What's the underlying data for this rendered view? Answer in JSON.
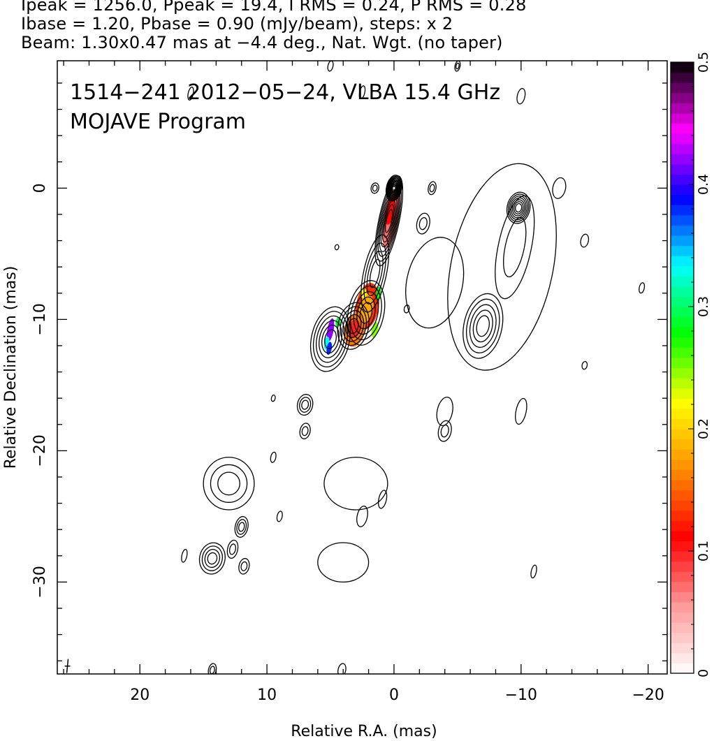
{
  "header": {
    "line1": "Ipeak = 1256.0, Ppeak = 19.4, I RMS = 0.24, P RMS = 0.28",
    "line2": "Ibase = 1.20, Pbase = 0.90 (mJy/beam), steps: x 2",
    "line3": "Beam: 1.30x0.47 mas at −4.4 deg., Nat. Wgt. (no taper)"
  },
  "annotation": {
    "line1": "1514−241  2012−05−24, VLBA 15.4 GHz",
    "line2": "MOJAVE Program"
  },
  "chart_data": {
    "type": "contour",
    "xlabel": "Relative R.A. (mas)",
    "ylabel": "Relative Declination (mas)",
    "xlim": [
      26.5,
      -21.5
    ],
    "ylim": [
      -37,
      9.7
    ],
    "xticks": [
      20,
      10,
      0,
      -10,
      -20
    ],
    "xtick_labels": [
      "20",
      "10",
      "0",
      "−10",
      "−20"
    ],
    "yticks": [
      0,
      -10,
      -20,
      -30
    ],
    "ytick_labels": [
      "0",
      "−10",
      "−20",
      "−30"
    ],
    "colorbar": {
      "min": 0,
      "max": 0.5,
      "ticks": [
        0,
        0.1,
        0.2,
        0.3,
        0.4,
        0.5
      ],
      "tick_labels": [
        "0",
        "0.1",
        "0.2",
        "0.3",
        "0.4",
        "0.5"
      ],
      "colors": [
        "#ffffff",
        "#ff9999",
        "#ff0000",
        "#ff8c00",
        "#ffff00",
        "#00ff00",
        "#00ffff",
        "#0000ff",
        "#ff00ff",
        "#000000"
      ]
    },
    "contour_groups": [
      {
        "x": 0,
        "y": 0,
        "rx": 0.6,
        "ry": 1.0,
        "levels": 10
      },
      {
        "x": 0.4,
        "y": -2.5,
        "rx": 0.8,
        "ry": 3.5,
        "levels": 8
      },
      {
        "x": 1.5,
        "y": -6.5,
        "rx": 0.9,
        "ry": 3.0,
        "levels": 4
      },
      {
        "x": 2.2,
        "y": -9.5,
        "rx": 1.4,
        "ry": 2.5,
        "levels": 5
      },
      {
        "x": 3.2,
        "y": -10.5,
        "rx": 1.2,
        "ry": 1.8,
        "levels": 5
      },
      {
        "x": 5.0,
        "y": -11.5,
        "rx": 1.5,
        "ry": 2.5,
        "levels": 6
      },
      {
        "x": -9.8,
        "y": -1.5,
        "rx": 0.9,
        "ry": 1.2,
        "levels": 7
      },
      {
        "x": -9.5,
        "y": -4.5,
        "rx": 1.3,
        "ry": 4.0,
        "levels": 2
      },
      {
        "x": -7.0,
        "y": -10.5,
        "rx": 1.5,
        "ry": 2.5,
        "levels": 5
      },
      {
        "x": -8.5,
        "y": -6.0,
        "rx": 4.0,
        "ry": 8.0,
        "levels": 1
      },
      {
        "x": 7.0,
        "y": -16.5,
        "rx": 0.6,
        "ry": 0.8,
        "levels": 3
      },
      {
        "x": 7.0,
        "y": -18.5,
        "rx": 0.4,
        "ry": 0.6,
        "levels": 2
      },
      {
        "x": 13.0,
        "y": -22.5,
        "rx": 2.0,
        "ry": 2.0,
        "levels": 3
      },
      {
        "x": 12.0,
        "y": -25.8,
        "rx": 0.5,
        "ry": 0.8,
        "levels": 3
      },
      {
        "x": 14.3,
        "y": -28.2,
        "rx": 1.0,
        "ry": 1.2,
        "levels": 4
      },
      {
        "x": 11.8,
        "y": -28.8,
        "rx": 0.4,
        "ry": 0.6,
        "levels": 2
      },
      {
        "x": 12.7,
        "y": -27.5,
        "rx": 0.4,
        "ry": 0.7,
        "levels": 2
      },
      {
        "x": 3.0,
        "y": -22.5,
        "rx": 2.5,
        "ry": 2.0,
        "levels": 1
      },
      {
        "x": 2.5,
        "y": -25.0,
        "rx": 0.4,
        "ry": 0.8,
        "levels": 1
      },
      {
        "x": 4.0,
        "y": -28.5,
        "rx": 2.0,
        "ry": 1.5,
        "levels": 1
      },
      {
        "x": -4.0,
        "y": -17.0,
        "rx": 0.6,
        "ry": 1.1,
        "levels": 1
      },
      {
        "x": -4.0,
        "y": -18.5,
        "rx": 0.5,
        "ry": 0.8,
        "levels": 2
      },
      {
        "x": -3.2,
        "y": -7.2,
        "rx": 2.2,
        "ry": 3.5,
        "levels": 1
      },
      {
        "x": 14.3,
        "y": -36.7,
        "rx": 0.3,
        "ry": 0.5,
        "levels": 2
      },
      {
        "x": 4.1,
        "y": -36.7,
        "rx": 0.3,
        "ry": 0.5,
        "levels": 1
      },
      {
        "x": -2.3,
        "y": -2.7,
        "rx": 0.5,
        "ry": 0.8,
        "levels": 2
      },
      {
        "x": -3.0,
        "y": 0,
        "rx": 0.3,
        "ry": 0.5,
        "levels": 2
      },
      {
        "x": 1.5,
        "y": 0,
        "rx": 0.3,
        "ry": 0.4,
        "levels": 2
      },
      {
        "x": -13.0,
        "y": 0,
        "rx": 0.5,
        "ry": 0.8,
        "levels": 1
      },
      {
        "x": 5.0,
        "y": 9.3,
        "rx": 0.2,
        "ry": 0.4,
        "levels": 1
      },
      {
        "x": -5.0,
        "y": 9.3,
        "rx": 0.2,
        "ry": 0.4,
        "levels": 2
      },
      {
        "x": -10.0,
        "y": -17.0,
        "rx": 0.4,
        "ry": 1.0,
        "levels": 1
      },
      {
        "x": -15.0,
        "y": -4.0,
        "rx": 0.3,
        "ry": 0.5,
        "levels": 1
      },
      {
        "x": -19.5,
        "y": -7.6,
        "rx": 0.2,
        "ry": 0.4,
        "levels": 1
      },
      {
        "x": 0.9,
        "y": -23.7,
        "rx": 0.3,
        "ry": 0.7,
        "levels": 1
      },
      {
        "x": 9.5,
        "y": -20.5,
        "rx": 0.2,
        "ry": 0.4,
        "levels": 1
      },
      {
        "x": 9.0,
        "y": -25.0,
        "rx": 0.2,
        "ry": 0.4,
        "levels": 1
      },
      {
        "x": 16.5,
        "y": -28.0,
        "rx": 0.2,
        "ry": 0.5,
        "levels": 1
      },
      {
        "x": -1.0,
        "y": -9.2,
        "rx": 0.2,
        "ry": 0.3,
        "levels": 1
      },
      {
        "x": -10.0,
        "y": 7.0,
        "rx": 0.3,
        "ry": 0.6,
        "levels": 1
      },
      {
        "x": 16.0,
        "y": 7.2,
        "rx": 0.2,
        "ry": 0.5,
        "levels": 1
      },
      {
        "x": -15.0,
        "y": -13.5,
        "rx": 0.2,
        "ry": 0.3,
        "levels": 1
      },
      {
        "x": 4.5,
        "y": -4.5,
        "rx": 0.15,
        "ry": 0.2,
        "levels": 1
      },
      {
        "x": 2.5,
        "y": 7.3,
        "rx": 0.2,
        "ry": 0.5,
        "levels": 1
      },
      {
        "x": 9.5,
        "y": -16.0,
        "rx": 0.15,
        "ry": 0.25,
        "levels": 1
      },
      {
        "x": -11.0,
        "y": -29.2,
        "rx": 0.2,
        "ry": 0.5,
        "levels": 1
      }
    ],
    "polarization_patches": [
      {
        "x": 0.2,
        "y": -2.2,
        "rx": 0.55,
        "ry": 2.4,
        "angle": 10,
        "value": 0.07
      },
      {
        "x": 0.3,
        "y": -1.7,
        "rx": 0.35,
        "ry": 1.1,
        "angle": 10,
        "value": 0.11
      },
      {
        "x": 2.1,
        "y": -9.0,
        "rx": 0.9,
        "ry": 1.8,
        "angle": 10,
        "value": 0.13
      },
      {
        "x": 2.2,
        "y": -9.2,
        "rx": 0.55,
        "ry": 1.2,
        "angle": 10,
        "value": 0.18
      },
      {
        "x": 3.1,
        "y": -10.8,
        "rx": 0.8,
        "ry": 1.3,
        "angle": 10,
        "value": 0.16
      },
      {
        "x": 3.1,
        "y": -10.7,
        "rx": 0.45,
        "ry": 0.7,
        "angle": 10,
        "value": 0.1
      },
      {
        "x": 2.4,
        "y": -8.0,
        "rx": 0.25,
        "ry": 0.4,
        "angle": 0,
        "value": 0.22
      },
      {
        "x": 1.5,
        "y": -10.8,
        "rx": 0.25,
        "ry": 0.6,
        "angle": 10,
        "value": 0.25
      },
      {
        "x": 1.2,
        "y": -8.0,
        "rx": 0.2,
        "ry": 0.5,
        "angle": 0,
        "value": 0.28
      },
      {
        "x": 5.0,
        "y": -10.8,
        "rx": 0.25,
        "ry": 0.9,
        "angle": 10,
        "value": 0.42
      },
      {
        "x": 5.3,
        "y": -11.8,
        "rx": 0.2,
        "ry": 0.5,
        "angle": 10,
        "value": 0.33
      },
      {
        "x": 4.4,
        "y": -10.2,
        "rx": 0.2,
        "ry": 0.4,
        "angle": 10,
        "value": 0.29
      },
      {
        "x": 5.1,
        "y": -12.2,
        "rx": 0.2,
        "ry": 0.5,
        "angle": 10,
        "value": 0.38
      }
    ],
    "peak_marker": {
      "x": 0,
      "y": 0
    },
    "beam": {
      "x": 25.7,
      "y": -36.4
    }
  }
}
